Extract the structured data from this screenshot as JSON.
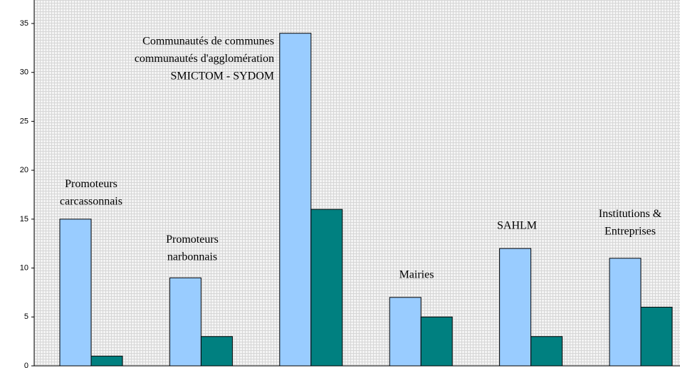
{
  "chart_data": {
    "type": "bar",
    "categories": [
      [
        "Promoteurs",
        "carcassonnais"
      ],
      [
        "Promoteurs",
        "narbonnais"
      ],
      [
        "Communautés de communes",
        "communautés d'agglomération",
        "SMICTOM - SYDOM"
      ],
      [
        "Mairies"
      ],
      [
        "SAHLM"
      ],
      [
        "Institutions &",
        "Entreprises"
      ]
    ],
    "series": [
      {
        "color": "#99ccff",
        "values": [
          15,
          9,
          34,
          7,
          12,
          11
        ]
      },
      {
        "color": "#008080",
        "values": [
          1,
          3,
          16,
          5,
          3,
          6
        ]
      }
    ],
    "ylim": [
      0,
      35
    ],
    "yticks": [
      0,
      5,
      10,
      15,
      20,
      25,
      30,
      35
    ],
    "grid": true
  }
}
